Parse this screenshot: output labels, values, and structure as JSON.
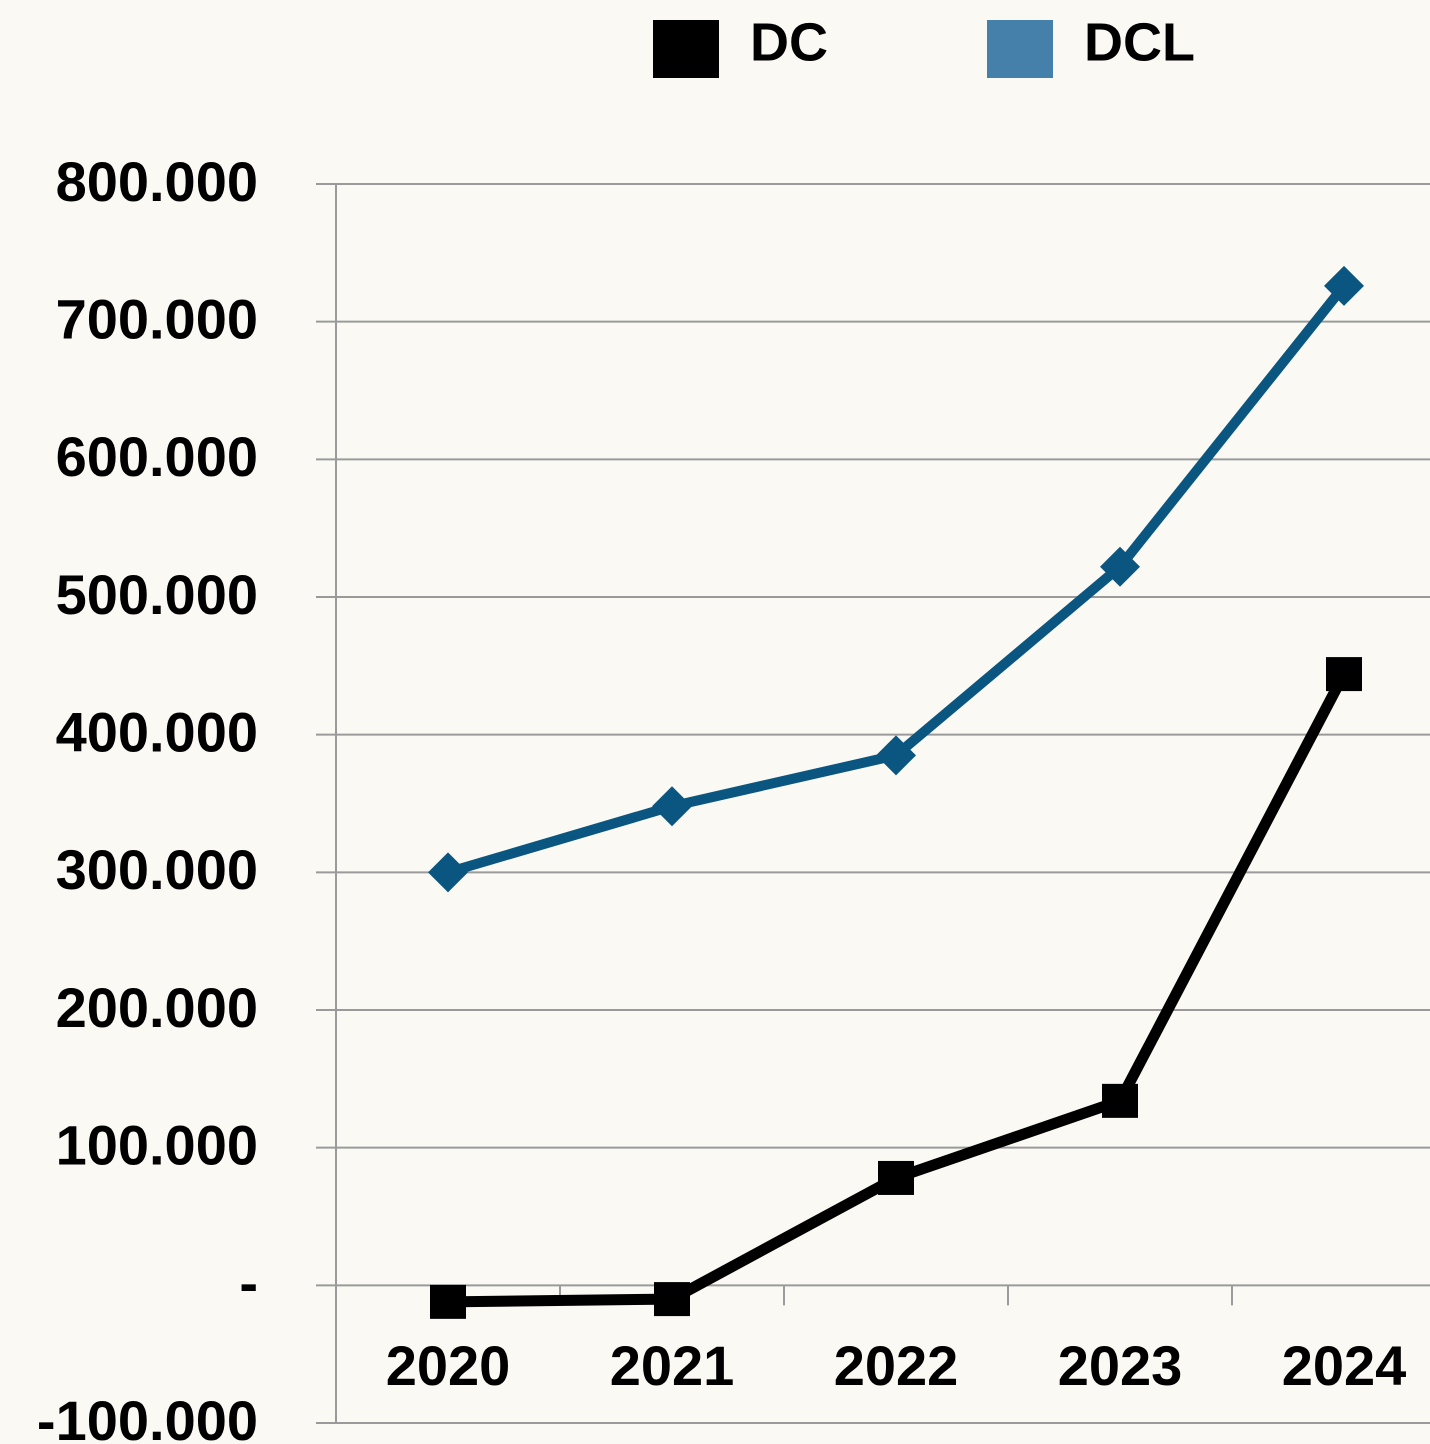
{
  "chart_data": {
    "type": "line",
    "categories": [
      "2020",
      "2021",
      "2022",
      "2023",
      "2024"
    ],
    "series": [
      {
        "name": "DC",
        "color": "#000000",
        "legend_color": "#000000",
        "marker": "square",
        "values": [
          -12000,
          -10000,
          78000,
          134000,
          444000
        ]
      },
      {
        "name": "DCL",
        "color": "#0b5680",
        "legend_color": "#4580aa",
        "marker": "diamond",
        "values": [
          300000,
          348000,
          385000,
          522000,
          726000
        ]
      }
    ],
    "ylim": [
      -100000,
      800000
    ],
    "yticks": [
      {
        "value": -100000,
        "label": "-100.000"
      },
      {
        "value": 0,
        "label": "-"
      },
      {
        "value": 100000,
        "label": "100.000"
      },
      {
        "value": 200000,
        "label": "200.000"
      },
      {
        "value": 300000,
        "label": "300.000"
      },
      {
        "value": 400000,
        "label": "400.000"
      },
      {
        "value": 500000,
        "label": "500.000"
      },
      {
        "value": 600000,
        "label": "600.000"
      },
      {
        "value": 700000,
        "label": "700.000"
      },
      {
        "value": 800000,
        "label": "800.000"
      }
    ],
    "grid": true,
    "legend": "top"
  }
}
